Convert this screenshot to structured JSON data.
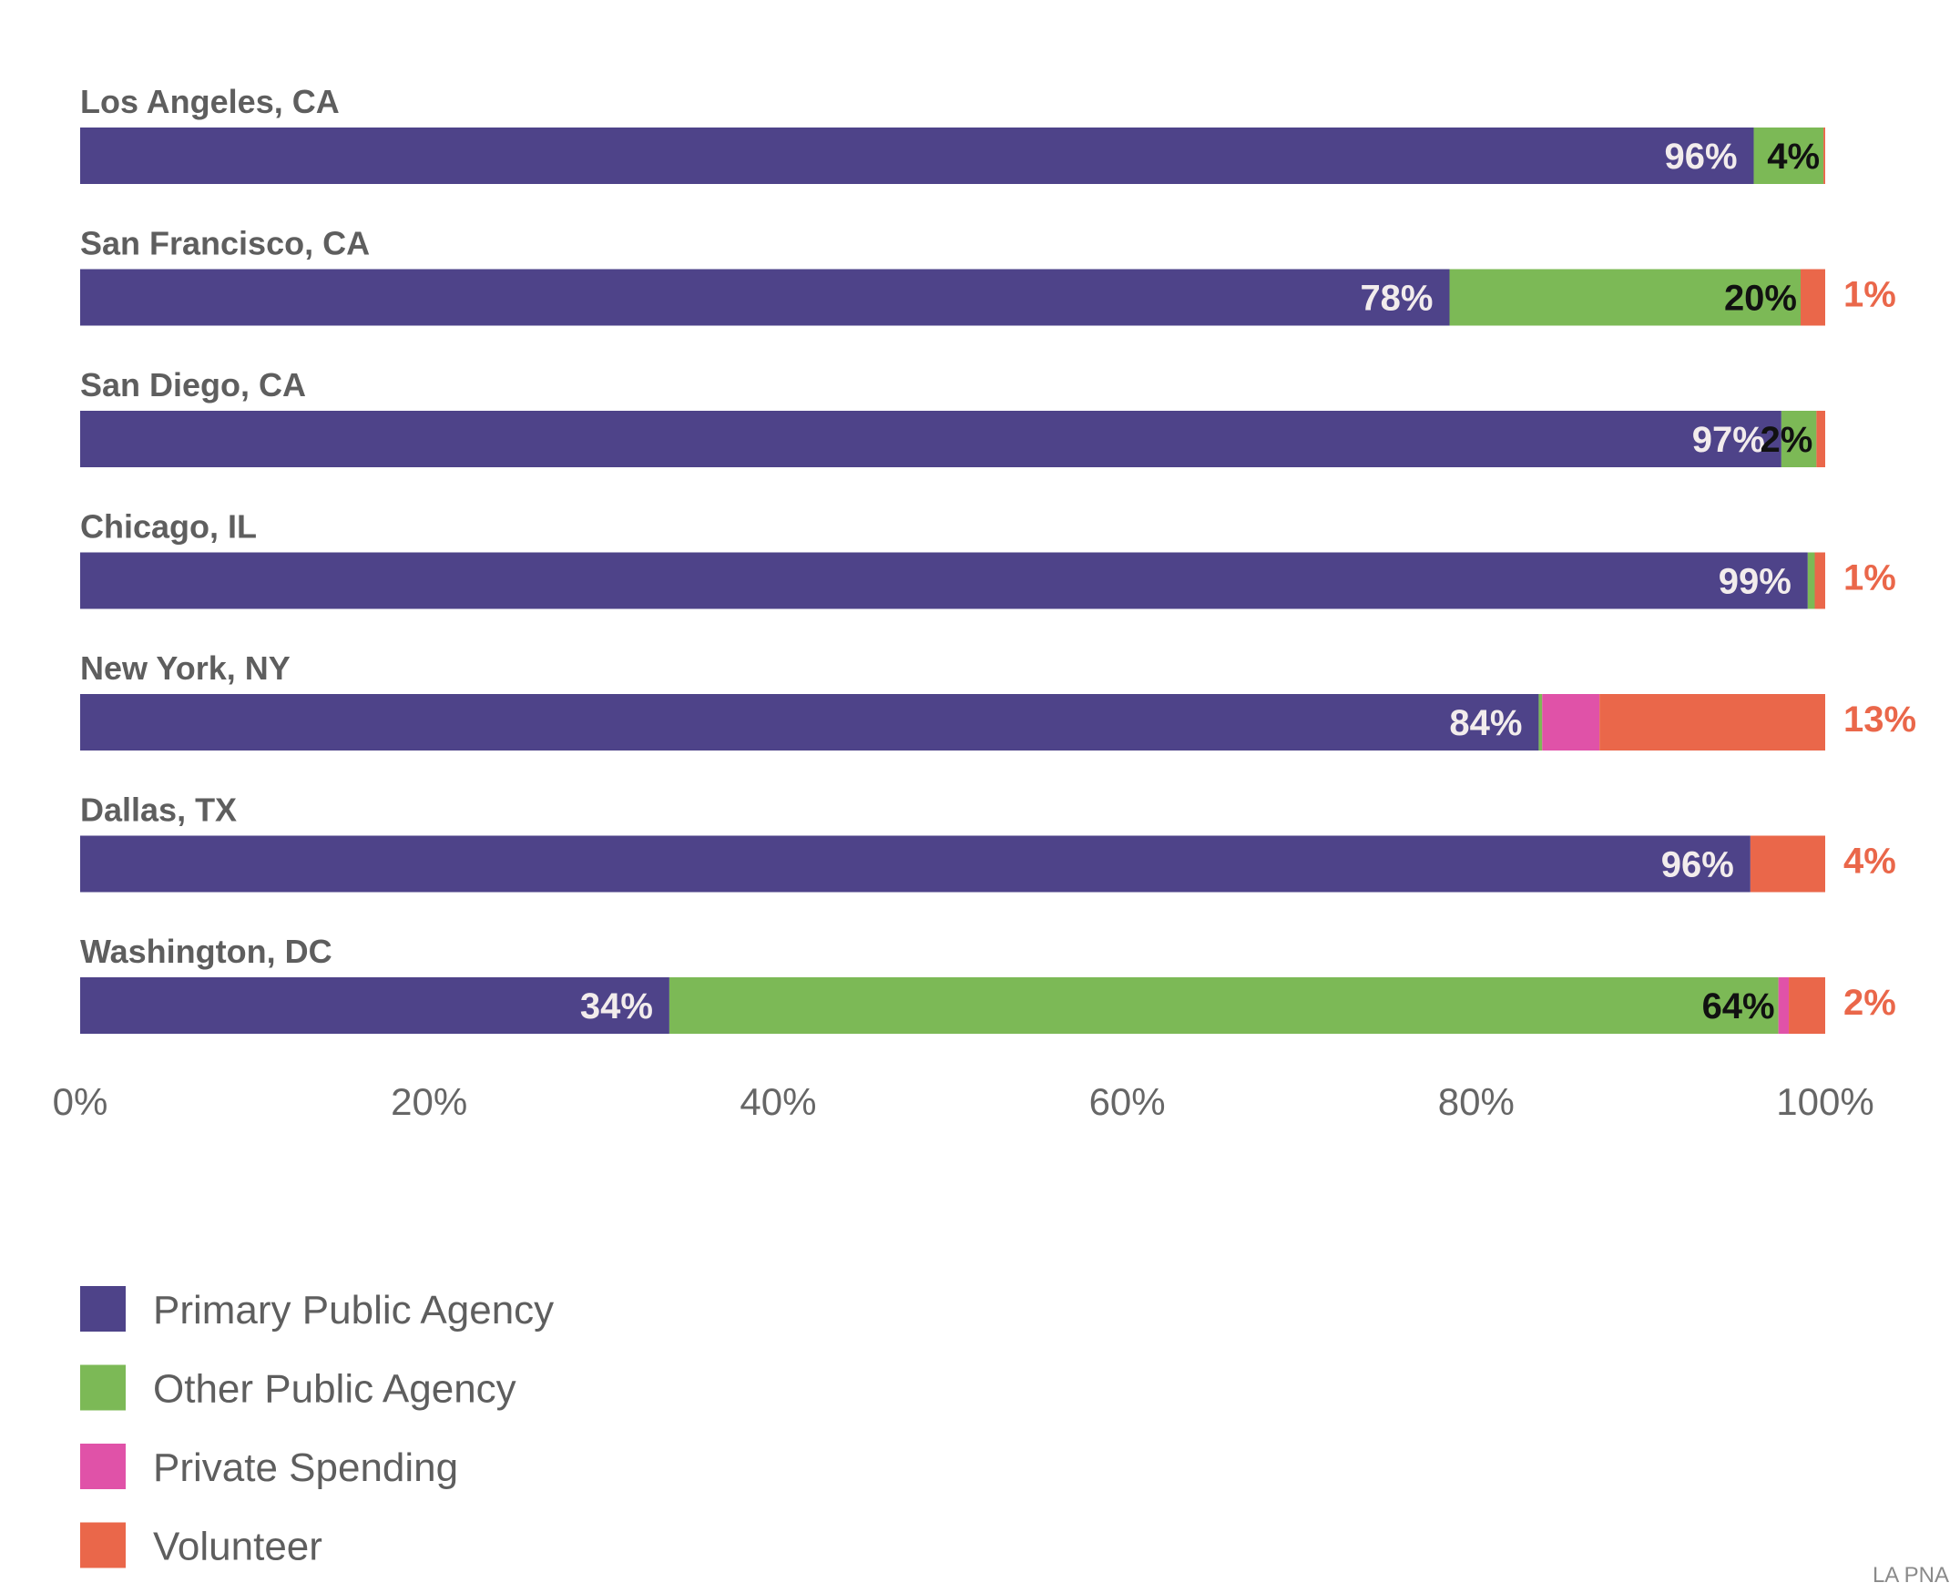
{
  "chart_data": {
    "type": "bar",
    "orientation": "horizontal",
    "stacked": true,
    "categories": [
      "Los Angeles, CA",
      "San Francisco, CA",
      "San Diego, CA",
      "Chicago, IL",
      "New York, NY",
      "Dallas, TX",
      "Washington, DC"
    ],
    "series": [
      {
        "name": "Primary Public Agency",
        "color": "#4e4389",
        "values": [
          96,
          78,
          97,
          99,
          84,
          96,
          34
        ]
      },
      {
        "name": "Other Public Agency",
        "color": "#7cb956",
        "values": [
          4,
          20,
          2,
          0.4,
          0.2,
          0,
          64
        ]
      },
      {
        "name": "Private Spending",
        "color": "#e052a8",
        "values": [
          0,
          0,
          0,
          0,
          3.3,
          0,
          0.6
        ]
      },
      {
        "name": "Volunteer",
        "color": "#ea674a",
        "values": [
          0.1,
          1.4,
          0.5,
          0.6,
          13,
          4.3,
          2.1
        ]
      }
    ],
    "data_labels": [
      [
        "96%",
        "4%",
        "",
        ""
      ],
      [
        "78%",
        "20%",
        "",
        "1%"
      ],
      [
        "97%",
        "2%",
        "",
        ""
      ],
      [
        "99%",
        "",
        "",
        "1%"
      ],
      [
        "84%",
        "",
        "",
        "13%"
      ],
      [
        "96%",
        "",
        "",
        "4%"
      ],
      [
        "34%",
        "64%",
        "",
        "2%"
      ]
    ],
    "x_ticks": [
      "0%",
      "20%",
      "40%",
      "60%",
      "80%",
      "100%"
    ],
    "xlim": [
      0,
      100
    ],
    "grid": false,
    "legend_position": "bottom-left",
    "source": "LA PNA"
  }
}
